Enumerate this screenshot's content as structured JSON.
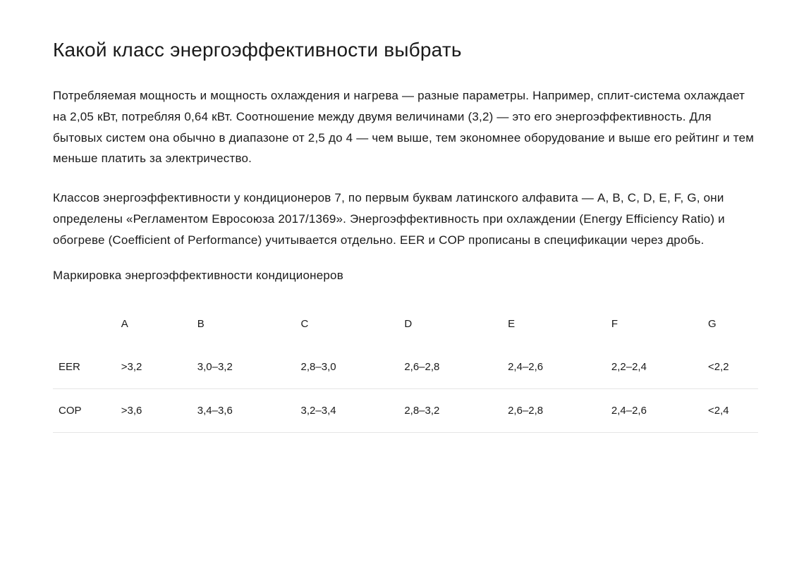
{
  "heading_main": "Какой класс энергоэффективности выбрать",
  "paragraph_1": "Потребляемая мощность и мощность охлаждения и нагрева — разные параметры. Например, сплит-система охлаждает на 2,05 кВт, потребляя 0,64 кВт. Соотношение между двумя величинами (3,2) — это его энергоэффективность. Для бытовых систем она обычно в диапазоне от 2,5 до 4 — чем выше, тем экономнее оборудование и выше его рейтинг и тем меньше платить за электричество.",
  "paragraph_2": "Классов энергоэффективности у кондиционеров 7, по первым буквам латинского алфавита — A, B, C, D, E, F, G, они определены «Регламентом Евросоюза 2017/1369». Энергоэффективность при охлаждении (Energy Efficiency Ratio) и обогреве (Coefficient of Performance) учитывается отдельно. EER и COP прописаны в спецификации через дробь.",
  "heading_sub": "Маркировка энергоэффективности кондиционеров",
  "table": {
    "type": "table",
    "columns": [
      "",
      "A",
      "B",
      "C",
      "D",
      "E",
      "F",
      "G"
    ],
    "rows": [
      [
        "EER",
        ">3,2",
        "3,0–3,2",
        "2,8–3,0",
        "2,6–2,8",
        "2,4–2,6",
        "2,2–2,4",
        "<2,2"
      ],
      [
        "COP",
        ">3,6",
        "3,4–3,6",
        "3,2–3,4",
        "2,8–3,2",
        "2,6–2,8",
        "2,4–2,6",
        "<2,4"
      ]
    ],
    "border_color": "#e5e5e5",
    "background_color": "#ffffff",
    "header_fontweight": 500,
    "body_fontweight": 300,
    "fontsize": 15
  },
  "styling": {
    "background_color": "#ffffff",
    "text_color": "#1a1a1a",
    "heading_main_fontsize": 28,
    "heading_main_fontweight": 500,
    "paragraph_fontsize": 17,
    "paragraph_lineheight": 1.75,
    "heading_sub_fontsize": 17,
    "heading_sub_fontweight": 500
  }
}
